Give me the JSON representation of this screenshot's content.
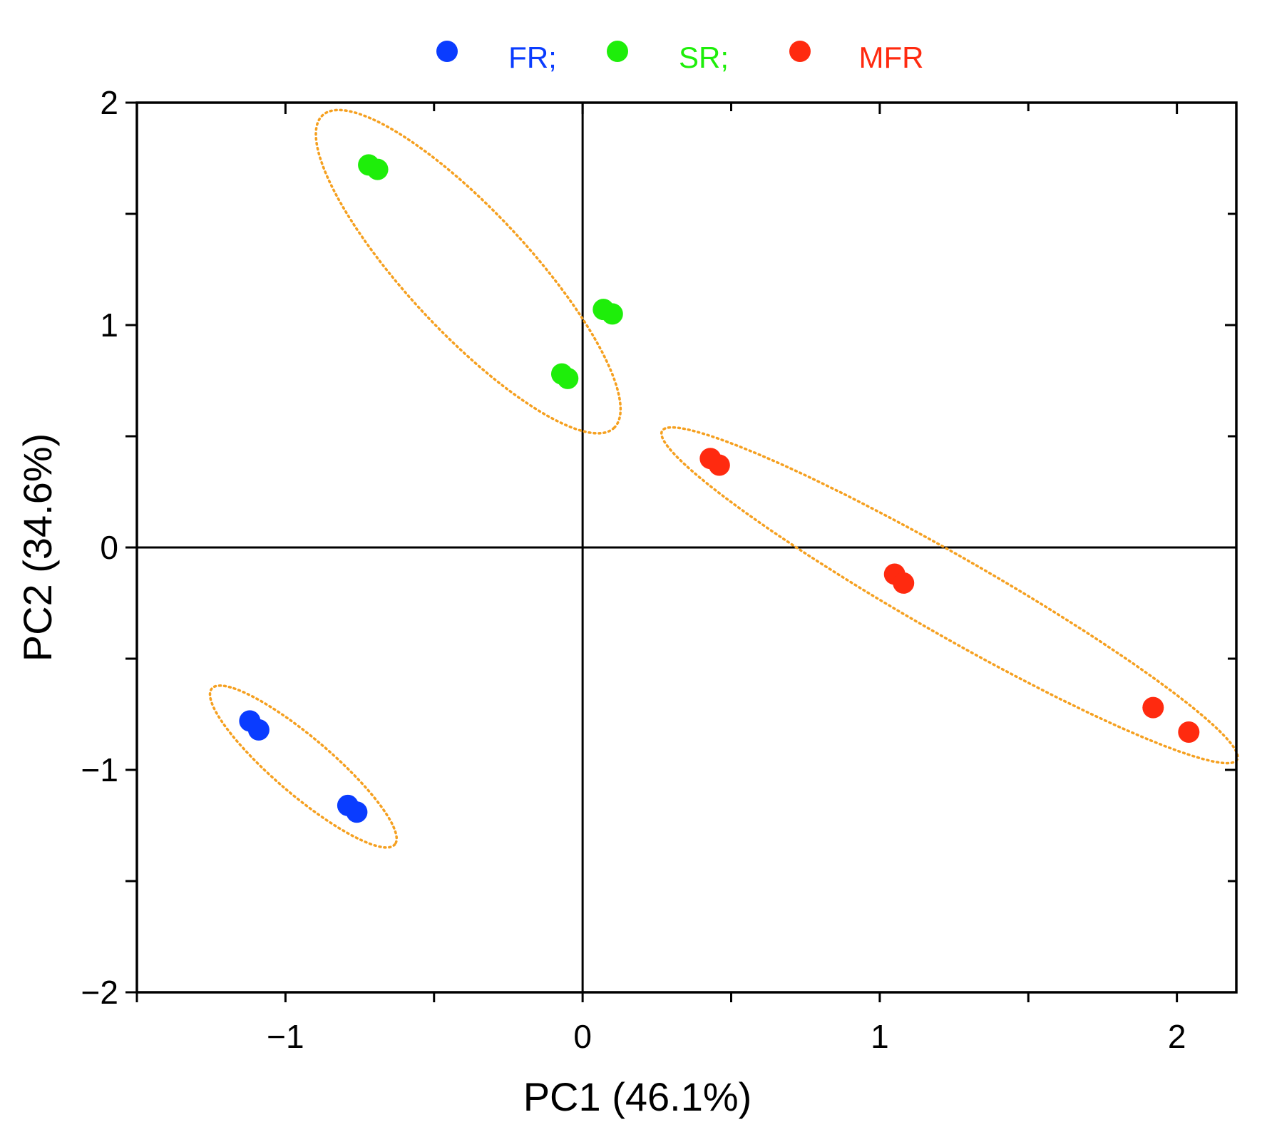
{
  "chart_data": {
    "type": "scatter",
    "title": "",
    "xlabel": "PC1 (46.1%)",
    "ylabel": "PC2 (34.6%)",
    "xlim": [
      -1.5,
      2.2
    ],
    "ylim": [
      -2,
      2
    ],
    "xticks": [
      -1,
      0,
      1,
      2
    ],
    "xtick_labels": [
      "−1",
      "0",
      "1",
      "2"
    ],
    "yticks": [
      -2,
      -1,
      0,
      1,
      2
    ],
    "ytick_labels": [
      "−2",
      "−1",
      "0",
      "1",
      "2"
    ],
    "x_minor_ticks": [
      -1.5,
      -1,
      -0.5,
      0,
      0.5,
      1,
      1.5,
      2
    ],
    "y_minor_ticks": [
      -2,
      -1.5,
      -1,
      -0.5,
      0,
      0.5,
      1,
      1.5,
      2
    ],
    "reference_lines": {
      "x": 0,
      "y": 0
    },
    "legend_position": "top-center",
    "series": [
      {
        "name": "FR;",
        "color": "#0a3cff",
        "points": [
          [
            -1.12,
            -0.78
          ],
          [
            -1.09,
            -0.82
          ],
          [
            -0.79,
            -1.16
          ],
          [
            -0.76,
            -1.19
          ]
        ]
      },
      {
        "name": "SR;",
        "color": "#1eee0a",
        "points": [
          [
            -0.72,
            1.72
          ],
          [
            -0.69,
            1.7
          ],
          [
            -0.07,
            0.78
          ],
          [
            -0.05,
            0.76
          ],
          [
            0.07,
            1.07
          ],
          [
            0.1,
            1.05
          ]
        ]
      },
      {
        "name": "MFR",
        "color": "#ff2a0f",
        "points": [
          [
            0.43,
            0.4
          ],
          [
            0.46,
            0.37
          ],
          [
            1.05,
            -0.12
          ],
          [
            1.08,
            -0.16
          ],
          [
            1.92,
            -0.72
          ],
          [
            2.04,
            -0.83
          ]
        ]
      }
    ],
    "ellipses": {
      "color": "#f5a020",
      "style": "dotted",
      "groups": [
        "FR;",
        "SR;",
        "MFR"
      ]
    }
  }
}
